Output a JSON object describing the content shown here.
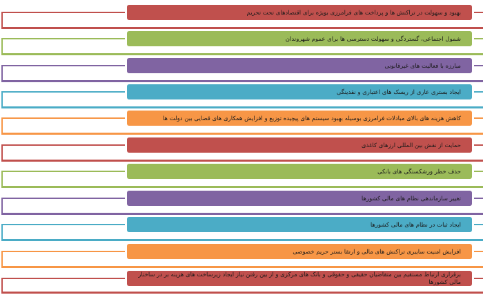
{
  "diagram": {
    "type": "list",
    "direction": "rtl",
    "items": [
      {
        "label": "بهبود و سهولت در تراکنش ها و پرداخت های فرامرزی بویژه برای اقتصادهای تحت تحریم",
        "color": "#C0504D"
      },
      {
        "label": "شمول اجتماعی، گستردگی و سهولت دسترسی ها برای عموم شهروندان",
        "color": "#9BBB59"
      },
      {
        "label": "مبارزه با فعالیت های غیرقانونی",
        "color": "#8064A2"
      },
      {
        "label": "ایجاد بستری عاری از ریسک های اعتباری و نقدینگی",
        "color": "#4BACC6"
      },
      {
        "label": "کاهش هزینه های بالای مبادلات فرامرزی بوسیله بهبود سیستم های پیچیده توزیع و افزایش همکاری های قضایی بین دولت ها",
        "color": "#F79646"
      },
      {
        "label": "حمایت از نقش بین المللی ارزهای کاغذی",
        "color": "#C0504D"
      },
      {
        "label": "حذف خطر ورشکستگی های بانکی",
        "color": "#9BBB59"
      },
      {
        "label": "تغییر سازماندهی نظام های مالی کشورها",
        "color": "#8064A2"
      },
      {
        "label": "ایجاد ثبات در نظام های مالی کشورها",
        "color": "#4BACC6"
      },
      {
        "label": "افزایش امنیت سایبری تراکنش های مالی و ارتقا بستر حریم خصوصی",
        "color": "#F79646"
      },
      {
        "label": "برقراری ارتباط مستقیم بین متقاضیان حقیقی و حقوقی و بانک های مرکزی و از بین رفتن نیاز ایجاد زیرساخت های هزینه بر در ساختار مالی کشورها",
        "color": "#C0504D"
      }
    ]
  }
}
